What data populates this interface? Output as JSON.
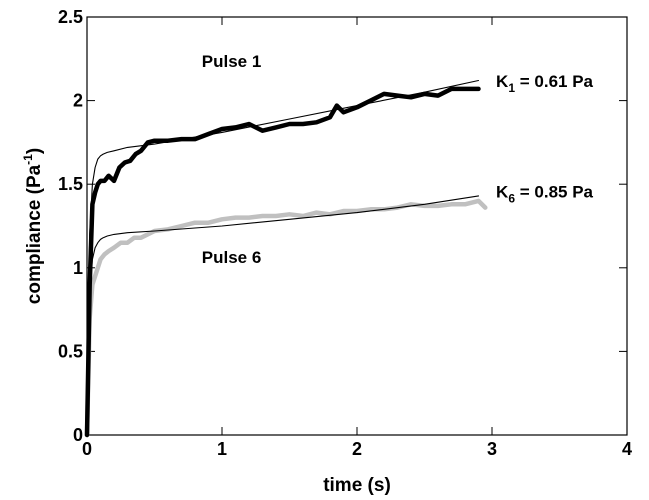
{
  "chart_data": {
    "type": "line",
    "xlabel": "time (s)",
    "ylabel_main": "compliance (Pa",
    "ylabel_sup": "-1",
    "ylabel_close": ")",
    "xlim": [
      0,
      4
    ],
    "ylim": [
      0,
      2.5
    ],
    "xticks": [
      0,
      1,
      2,
      3,
      4
    ],
    "yticks": [
      0,
      0.5,
      1,
      1.5,
      2,
      2.5
    ],
    "xtick_labels": [
      "0",
      "1",
      "2",
      "3",
      "4"
    ],
    "ytick_labels": [
      "0",
      "0.5",
      "1",
      "1.5",
      "2",
      "2.5"
    ],
    "grid": false,
    "series": [
      {
        "color": "#000000",
        "style": "thick",
        "x": [
          0,
          0.02,
          0.04,
          0.06,
          0.08,
          0.1,
          0.13,
          0.16,
          0.2,
          0.24,
          0.28,
          0.32,
          0.36,
          0.4,
          0.45,
          0.5,
          0.6,
          0.7,
          0.8,
          0.9,
          1.0,
          1.1,
          1.2,
          1.3,
          1.4,
          1.5,
          1.6,
          1.7,
          1.8,
          1.85,
          1.9,
          2.0,
          2.1,
          2.2,
          2.3,
          2.4,
          2.5,
          2.6,
          2.7,
          2.8,
          2.9
        ],
        "y": [
          0,
          0.9,
          1.38,
          1.45,
          1.5,
          1.52,
          1.52,
          1.55,
          1.52,
          1.6,
          1.63,
          1.64,
          1.68,
          1.7,
          1.75,
          1.76,
          1.76,
          1.77,
          1.77,
          1.8,
          1.83,
          1.84,
          1.86,
          1.82,
          1.84,
          1.86,
          1.86,
          1.87,
          1.9,
          1.97,
          1.93,
          1.96,
          2.0,
          2.04,
          2.03,
          2.02,
          2.04,
          2.03,
          2.07,
          2.07,
          2.07
        ]
      },
      {
        "color": "#000000",
        "style": "thin",
        "x": [
          0,
          0.02,
          0.04,
          0.06,
          0.08,
          0.1,
          0.12,
          0.15,
          0.2,
          0.3,
          0.5,
          1.0,
          1.5,
          2.0,
          2.5,
          2.9
        ],
        "y": [
          0,
          1.2,
          1.5,
          1.6,
          1.65,
          1.67,
          1.68,
          1.69,
          1.7,
          1.72,
          1.74,
          1.81,
          1.89,
          1.97,
          2.05,
          2.12
        ]
      },
      {
        "color": "#c0c0c0",
        "style": "thick",
        "x": [
          0,
          0.02,
          0.04,
          0.06,
          0.08,
          0.1,
          0.13,
          0.16,
          0.2,
          0.25,
          0.3,
          0.35,
          0.4,
          0.45,
          0.5,
          0.6,
          0.7,
          0.8,
          0.9,
          1.0,
          1.1,
          1.2,
          1.3,
          1.4,
          1.5,
          1.6,
          1.7,
          1.8,
          1.9,
          2.0,
          2.1,
          2.2,
          2.3,
          2.4,
          2.5,
          2.6,
          2.7,
          2.8,
          2.9,
          2.95
        ],
        "y": [
          0,
          0.7,
          0.9,
          0.95,
          1.0,
          1.05,
          1.08,
          1.1,
          1.12,
          1.15,
          1.15,
          1.18,
          1.18,
          1.2,
          1.22,
          1.23,
          1.25,
          1.27,
          1.27,
          1.29,
          1.3,
          1.3,
          1.31,
          1.31,
          1.32,
          1.31,
          1.33,
          1.32,
          1.34,
          1.34,
          1.35,
          1.35,
          1.36,
          1.38,
          1.37,
          1.37,
          1.38,
          1.38,
          1.4,
          1.36
        ]
      },
      {
        "color": "#000000",
        "style": "thin",
        "x": [
          0,
          0.02,
          0.04,
          0.06,
          0.08,
          0.1,
          0.12,
          0.15,
          0.2,
          0.3,
          0.5,
          1.0,
          1.5,
          2.0,
          2.5,
          2.9
        ],
        "y": [
          0,
          0.85,
          1.05,
          1.12,
          1.15,
          1.17,
          1.18,
          1.19,
          1.2,
          1.21,
          1.22,
          1.25,
          1.29,
          1.33,
          1.38,
          1.43
        ]
      }
    ],
    "annotations": [
      {
        "text": "Pulse 1",
        "x": 0.85,
        "y": 2.2
      },
      {
        "text": "Pulse 6",
        "x": 0.85,
        "y": 1.03
      }
    ],
    "k_labels": [
      {
        "main": "K",
        "sub": "1",
        "rest": " = 0.61 Pa",
        "x": 3.03,
        "y": 2.08
      },
      {
        "main": "K",
        "sub": "6",
        "rest": " = 0.85 Pa",
        "x": 3.03,
        "y": 1.42
      }
    ]
  }
}
